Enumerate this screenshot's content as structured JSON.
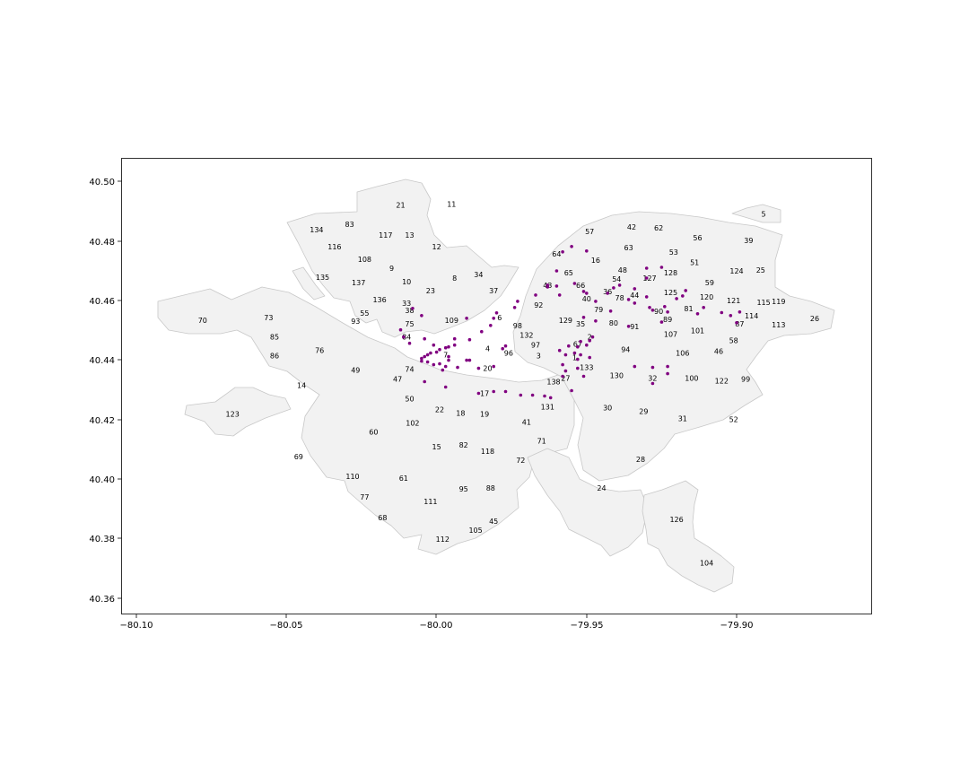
{
  "figure": {
    "background": "#ffffff",
    "region_fill": "#f2f2f2",
    "region_stroke": "#c8c8c8",
    "point_color": "#800080"
  },
  "axes": {
    "x_ticks": [
      "−80.10",
      "−80.05",
      "−80.00",
      "−79.95",
      "−79.90"
    ],
    "y_ticks": [
      "40.36",
      "40.38",
      "40.40",
      "40.42",
      "40.44",
      "40.46",
      "40.48",
      "40.50"
    ]
  },
  "chart_data": {
    "type": "scatter",
    "xlim": [
      -80.105,
      -79.855
    ],
    "ylim": [
      40.355,
      40.508
    ],
    "grid": false,
    "legend": "none",
    "region_labels": [
      {
        "text": "5",
        "x": -79.891,
        "y": 40.4894
      },
      {
        "text": "11",
        "x": -79.995,
        "y": 40.4927
      },
      {
        "text": "21",
        "x": -80.012,
        "y": 40.4924
      },
      {
        "text": "83",
        "x": -80.029,
        "y": 40.4858
      },
      {
        "text": "134",
        "x": -80.04,
        "y": 40.484
      },
      {
        "text": "117",
        "x": -80.017,
        "y": 40.4822
      },
      {
        "text": "13",
        "x": -80.009,
        "y": 40.4822
      },
      {
        "text": "42",
        "x": -79.935,
        "y": 40.4849
      },
      {
        "text": "62",
        "x": -79.926,
        "y": 40.4846
      },
      {
        "text": "57",
        "x": -79.949,
        "y": 40.4834
      },
      {
        "text": "56",
        "x": -79.913,
        "y": 40.4813
      },
      {
        "text": "39",
        "x": -79.896,
        "y": 40.4804
      },
      {
        "text": "116",
        "x": -80.034,
        "y": 40.4783
      },
      {
        "text": "12",
        "x": -80.0,
        "y": 40.4783
      },
      {
        "text": "63",
        "x": -79.936,
        "y": 40.478
      },
      {
        "text": "53",
        "x": -79.921,
        "y": 40.4765
      },
      {
        "text": "108",
        "x": -80.024,
        "y": 40.4741
      },
      {
        "text": "16",
        "x": -79.947,
        "y": 40.4738
      },
      {
        "text": "51",
        "x": -79.914,
        "y": 40.4731
      },
      {
        "text": "25",
        "x": -79.892,
        "y": 40.4705
      },
      {
        "text": "9",
        "x": -80.015,
        "y": 40.4711
      },
      {
        "text": "64",
        "x": -79.96,
        "y": 40.4759
      },
      {
        "text": "48",
        "x": -79.938,
        "y": 40.4705
      },
      {
        "text": "124",
        "x": -79.9,
        "y": 40.4702
      },
      {
        "text": "34",
        "x": -79.986,
        "y": 40.469
      },
      {
        "text": "8",
        "x": -79.994,
        "y": 40.4678
      },
      {
        "text": "135",
        "x": -80.038,
        "y": 40.4681
      },
      {
        "text": "65",
        "x": -79.956,
        "y": 40.4696
      },
      {
        "text": "128",
        "x": -79.922,
        "y": 40.4696
      },
      {
        "text": "127",
        "x": -79.929,
        "y": 40.4678
      },
      {
        "text": "54",
        "x": -79.94,
        "y": 40.4675
      },
      {
        "text": "137",
        "x": -80.026,
        "y": 40.4663
      },
      {
        "text": "10",
        "x": -80.01,
        "y": 40.4666
      },
      {
        "text": "59",
        "x": -79.909,
        "y": 40.4663
      },
      {
        "text": "43",
        "x": -79.963,
        "y": 40.4654
      },
      {
        "text": "66",
        "x": -79.952,
        "y": 40.4654
      },
      {
        "text": "23",
        "x": -80.002,
        "y": 40.4636
      },
      {
        "text": "37",
        "x": -79.981,
        "y": 40.4636
      },
      {
        "text": "36",
        "x": -79.943,
        "y": 40.4633
      },
      {
        "text": "125",
        "x": -79.922,
        "y": 40.463
      },
      {
        "text": "44",
        "x": -79.934,
        "y": 40.4621
      },
      {
        "text": "120",
        "x": -79.91,
        "y": 40.4615
      },
      {
        "text": "136",
        "x": -80.019,
        "y": 40.4606
      },
      {
        "text": "40",
        "x": -79.95,
        "y": 40.4609
      },
      {
        "text": "78",
        "x": -79.939,
        "y": 40.4612
      },
      {
        "text": "121",
        "x": -79.901,
        "y": 40.4603
      },
      {
        "text": "92",
        "x": -79.966,
        "y": 40.4588
      },
      {
        "text": "33",
        "x": -80.01,
        "y": 40.4594
      },
      {
        "text": "115",
        "x": -79.891,
        "y": 40.4597
      },
      {
        "text": "119",
        "x": -79.886,
        "y": 40.46
      },
      {
        "text": "81",
        "x": -79.916,
        "y": 40.4576
      },
      {
        "text": "90",
        "x": -79.926,
        "y": 40.4567
      },
      {
        "text": "38",
        "x": -80.009,
        "y": 40.457
      },
      {
        "text": "79",
        "x": -79.946,
        "y": 40.4573
      },
      {
        "text": "55",
        "x": -80.024,
        "y": 40.4561
      },
      {
        "text": "114",
        "x": -79.895,
        "y": 40.4552
      },
      {
        "text": "70",
        "x": -80.078,
        "y": 40.4537
      },
      {
        "text": "73",
        "x": -80.056,
        "y": 40.4546
      },
      {
        "text": "109",
        "x": -79.995,
        "y": 40.4537
      },
      {
        "text": "89",
        "x": -79.923,
        "y": 40.454
      },
      {
        "text": "93",
        "x": -80.027,
        "y": 40.4534
      },
      {
        "text": "26",
        "x": -79.874,
        "y": 40.4543
      },
      {
        "text": "129",
        "x": -79.957,
        "y": 40.4537
      },
      {
        "text": "6",
        "x": -79.979,
        "y": 40.4546
      },
      {
        "text": "35",
        "x": -79.952,
        "y": 40.4525
      },
      {
        "text": "80",
        "x": -79.941,
        "y": 40.4528
      },
      {
        "text": "75",
        "x": -80.009,
        "y": 40.4525
      },
      {
        "text": "87",
        "x": -79.899,
        "y": 40.4525
      },
      {
        "text": "113",
        "x": -79.886,
        "y": 40.4522
      },
      {
        "text": "98",
        "x": -79.973,
        "y": 40.4519
      },
      {
        "text": "91",
        "x": -79.934,
        "y": 40.4516
      },
      {
        "text": "101",
        "x": -79.913,
        "y": 40.4501
      },
      {
        "text": "107",
        "x": -79.922,
        "y": 40.4489
      },
      {
        "text": "132",
        "x": -79.97,
        "y": 40.4486
      },
      {
        "text": "84",
        "x": -80.01,
        "y": 40.448
      },
      {
        "text": "85",
        "x": -80.054,
        "y": 40.448
      },
      {
        "text": "58",
        "x": -79.901,
        "y": 40.4468
      },
      {
        "text": "2",
        "x": -79.949,
        "y": 40.448
      },
      {
        "text": "67",
        "x": -79.953,
        "y": 40.4456
      },
      {
        "text": "97",
        "x": -79.967,
        "y": 40.4453
      },
      {
        "text": "4",
        "x": -79.983,
        "y": 40.4441
      },
      {
        "text": "94",
        "x": -79.937,
        "y": 40.4438
      },
      {
        "text": "76",
        "x": -80.039,
        "y": 40.4435
      },
      {
        "text": "46",
        "x": -79.906,
        "y": 40.4432
      },
      {
        "text": "106",
        "x": -79.918,
        "y": 40.4426
      },
      {
        "text": "96",
        "x": -79.976,
        "y": 40.4426
      },
      {
        "text": "86",
        "x": -80.054,
        "y": 40.4417
      },
      {
        "text": "7",
        "x": -79.997,
        "y": 40.442
      },
      {
        "text": "3",
        "x": -79.966,
        "y": 40.4417
      },
      {
        "text": "1",
        "x": -79.954,
        "y": 40.4411
      },
      {
        "text": "133",
        "x": -79.95,
        "y": 40.4378
      },
      {
        "text": "20",
        "x": -79.983,
        "y": 40.4375
      },
      {
        "text": "74",
        "x": -80.009,
        "y": 40.4372
      },
      {
        "text": "49",
        "x": -80.027,
        "y": 40.4369
      },
      {
        "text": "130",
        "x": -79.94,
        "y": 40.4351
      },
      {
        "text": "100",
        "x": -79.915,
        "y": 40.4342
      },
      {
        "text": "27",
        "x": -79.957,
        "y": 40.4342
      },
      {
        "text": "32",
        "x": -79.928,
        "y": 40.4342
      },
      {
        "text": "99",
        "x": -79.897,
        "y": 40.4339
      },
      {
        "text": "47",
        "x": -80.013,
        "y": 40.4339
      },
      {
        "text": "122",
        "x": -79.905,
        "y": 40.4333
      },
      {
        "text": "138",
        "x": -79.961,
        "y": 40.433
      },
      {
        "text": "14",
        "x": -80.045,
        "y": 40.4318
      },
      {
        "text": "17",
        "x": -79.984,
        "y": 40.4291
      },
      {
        "text": "50",
        "x": -80.009,
        "y": 40.4273
      },
      {
        "text": "131",
        "x": -79.963,
        "y": 40.4246
      },
      {
        "text": "30",
        "x": -79.943,
        "y": 40.4243
      },
      {
        "text": "22",
        "x": -79.999,
        "y": 40.4237
      },
      {
        "text": "29",
        "x": -79.931,
        "y": 40.4231
      },
      {
        "text": "18",
        "x": -79.992,
        "y": 40.4225
      },
      {
        "text": "19",
        "x": -79.984,
        "y": 40.4222
      },
      {
        "text": "123",
        "x": -80.068,
        "y": 40.4222
      },
      {
        "text": "31",
        "x": -79.918,
        "y": 40.4207
      },
      {
        "text": "52",
        "x": -79.901,
        "y": 40.4204
      },
      {
        "text": "102",
        "x": -80.008,
        "y": 40.4192
      },
      {
        "text": "41",
        "x": -79.97,
        "y": 40.4195
      },
      {
        "text": "60",
        "x": -80.021,
        "y": 40.4162
      },
      {
        "text": "71",
        "x": -79.965,
        "y": 40.4132
      },
      {
        "text": "82",
        "x": -79.991,
        "y": 40.4117
      },
      {
        "text": "15",
        "x": -80.0,
        "y": 40.4111
      },
      {
        "text": "118",
        "x": -79.983,
        "y": 40.4096
      },
      {
        "text": "69",
        "x": -80.046,
        "y": 40.4078
      },
      {
        "text": "72",
        "x": -79.972,
        "y": 40.4066
      },
      {
        "text": "28",
        "x": -79.932,
        "y": 40.4069
      },
      {
        "text": "110",
        "x": -80.028,
        "y": 40.4012
      },
      {
        "text": "61",
        "x": -80.011,
        "y": 40.4006
      },
      {
        "text": "24",
        "x": -79.945,
        "y": 40.3973
      },
      {
        "text": "95",
        "x": -79.991,
        "y": 40.397
      },
      {
        "text": "88",
        "x": -79.982,
        "y": 40.3973
      },
      {
        "text": "77",
        "x": -80.024,
        "y": 40.3943
      },
      {
        "text": "111",
        "x": -80.002,
        "y": 40.3928
      },
      {
        "text": "68",
        "x": -80.018,
        "y": 40.3874
      },
      {
        "text": "126",
        "x": -79.92,
        "y": 40.3868
      },
      {
        "text": "45",
        "x": -79.981,
        "y": 40.3862
      },
      {
        "text": "105",
        "x": -79.987,
        "y": 40.3832
      },
      {
        "text": "112",
        "x": -79.998,
        "y": 40.3802
      },
      {
        "text": "104",
        "x": -79.91,
        "y": 40.3722
      }
    ],
    "points": [
      [
        -79.955,
        40.4784
      ],
      [
        -79.958,
        40.4766
      ],
      [
        -79.95,
        40.4769
      ],
      [
        -79.96,
        40.4702
      ],
      [
        -79.954,
        40.466
      ],
      [
        -79.963,
        40.4654
      ],
      [
        -79.96,
        40.4651
      ],
      [
        -79.95,
        40.4627
      ],
      [
        -79.959,
        40.4621
      ],
      [
        -79.967,
        40.4621
      ],
      [
        -79.973,
        40.46
      ],
      [
        -79.974,
        40.4579
      ],
      [
        -79.98,
        40.4561
      ],
      [
        -79.981,
        40.4543
      ],
      [
        -79.982,
        40.4519
      ],
      [
        -79.985,
        40.4498
      ],
      [
        -79.989,
        40.4471
      ],
      [
        -79.994,
        40.4453
      ],
      [
        -79.996,
        40.4447
      ],
      [
        -79.997,
        40.4444
      ],
      [
        -79.999,
        40.4438
      ],
      [
        -80.0,
        40.4429
      ],
      [
        -80.002,
        40.4426
      ],
      [
        -80.003,
        40.442
      ],
      [
        -80.004,
        40.4414
      ],
      [
        -80.005,
        40.4408
      ],
      [
        -80.005,
        40.4399
      ],
      [
        -80.003,
        40.4396
      ],
      [
        -80.001,
        40.4387
      ],
      [
        -79.999,
        40.439
      ],
      [
        -79.997,
        40.4381
      ],
      [
        -79.998,
        40.4369
      ],
      [
        -79.996,
        40.4402
      ],
      [
        -79.996,
        40.4414
      ],
      [
        -79.993,
        40.4378
      ],
      [
        -79.989,
        40.4402
      ],
      [
        -79.986,
        40.4375
      ],
      [
        -79.981,
        40.4381
      ],
      [
        -79.994,
        40.4474
      ],
      [
        -80.001,
        40.4453
      ],
      [
        -80.004,
        40.4474
      ],
      [
        -80.009,
        40.4459
      ],
      [
        -80.011,
        40.448
      ],
      [
        -80.012,
        40.4504
      ],
      [
        -80.005,
        40.4552
      ],
      [
        -80.008,
        40.4576
      ],
      [
        -79.99,
        40.4543
      ],
      [
        -79.963,
        40.4648
      ],
      [
        -79.951,
        40.4633
      ],
      [
        -79.947,
        40.46
      ],
      [
        -79.951,
        40.4546
      ],
      [
        -79.947,
        40.4534
      ],
      [
        -79.942,
        40.4567
      ],
      [
        -79.943,
        40.4627
      ],
      [
        -79.941,
        40.4645
      ],
      [
        -79.939,
        40.4654
      ],
      [
        -79.934,
        40.4642
      ],
      [
        -79.934,
        40.4594
      ],
      [
        -79.936,
        40.4606
      ],
      [
        -79.93,
        40.4615
      ],
      [
        -79.928,
        40.457
      ],
      [
        -79.924,
        40.4582
      ],
      [
        -79.92,
        40.4609
      ],
      [
        -79.917,
        40.4636
      ],
      [
        -79.918,
        40.4618
      ],
      [
        -79.911,
        40.4579
      ],
      [
        -79.913,
        40.4558
      ],
      [
        -79.905,
        40.4562
      ],
      [
        -79.902,
        40.4552
      ],
      [
        -79.9,
        40.4528
      ],
      [
        -79.899,
        40.4564
      ],
      [
        -79.923,
        40.4564
      ],
      [
        -79.925,
        40.453
      ],
      [
        -79.929,
        40.4579
      ],
      [
        -79.936,
        40.4516
      ],
      [
        -79.93,
        40.4711
      ],
      [
        -79.925,
        40.4714
      ],
      [
        -79.93,
        40.4678
      ],
      [
        -79.948,
        40.448
      ],
      [
        -79.949,
        40.4468
      ],
      [
        -79.952,
        40.4465
      ],
      [
        -79.95,
        40.4453
      ],
      [
        -79.953,
        40.4447
      ],
      [
        -79.956,
        40.445
      ],
      [
        -79.959,
        40.4435
      ],
      [
        -79.954,
        40.4426
      ],
      [
        -79.952,
        40.442
      ],
      [
        -79.949,
        40.4411
      ],
      [
        -79.953,
        40.4405
      ],
      [
        -79.957,
        40.442
      ],
      [
        -79.958,
        40.4387
      ],
      [
        -79.957,
        40.4366
      ],
      [
        -79.953,
        40.4375
      ],
      [
        -79.951,
        40.4348
      ],
      [
        -79.955,
        40.43
      ],
      [
        -79.958,
        40.4348
      ],
      [
        -79.977,
        40.445
      ],
      [
        -79.978,
        40.4441
      ],
      [
        -79.923,
        40.4381
      ],
      [
        -79.923,
        40.4357
      ],
      [
        -79.928,
        40.4378
      ],
      [
        -79.934,
        40.4381
      ],
      [
        -79.928,
        40.4324
      ],
      [
        -79.977,
        40.4297
      ],
      [
        -79.972,
        40.4285
      ],
      [
        -79.968,
        40.4285
      ],
      [
        -79.964,
        40.4282
      ],
      [
        -79.962,
        40.4276
      ],
      [
        -79.981,
        40.4297
      ],
      [
        -79.986,
        40.4291
      ],
      [
        -79.997,
        40.4312
      ],
      [
        -80.004,
        40.433
      ],
      [
        -79.99,
        40.4402
      ]
    ]
  }
}
